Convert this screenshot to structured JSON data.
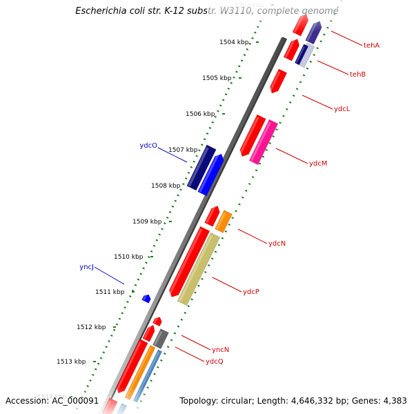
{
  "title": "Escherichia coli str. K-12 substr. W3110, complete genome",
  "accession": "Accession: AC_000091",
  "topology": "Topology: circular; Length: 4,646,332 bp; Genes: 4,383",
  "ticks": [
    {
      "label": "1503 kbp",
      "faded": true
    },
    {
      "label": "1504 kbp"
    },
    {
      "label": "1505 kbp"
    },
    {
      "label": "1506 kbp"
    },
    {
      "label": "1507 kbp"
    },
    {
      "label": "1508 kbp"
    },
    {
      "label": "1509 kbp"
    },
    {
      "label": "1510 kbp"
    },
    {
      "label": "1511 kbp"
    },
    {
      "label": "1512 kbp"
    },
    {
      "label": "1513 kbp"
    },
    {
      "label": "1514 kbp",
      "faded": true
    }
  ],
  "gene_labels": [
    {
      "name": "tehA",
      "color": "#cc0000"
    },
    {
      "name": "tehB",
      "color": "#cc0000"
    },
    {
      "name": "ydcL",
      "color": "#cc0000"
    },
    {
      "name": "ydcM",
      "color": "#cc0000"
    },
    {
      "name": "ydcN",
      "color": "#cc0000"
    },
    {
      "name": "ydcP",
      "color": "#cc0000"
    },
    {
      "name": "yncN",
      "color": "#cc0000"
    },
    {
      "name": "ydcQ",
      "color": "#cc0000"
    },
    {
      "name": "ydcO",
      "color": "#0000cc"
    },
    {
      "name": "yncJ",
      "color": "#0000cc"
    }
  ],
  "colors": {
    "red": "#ff0000",
    "navy": "#0a0a7a",
    "blue": "#0000ff",
    "magenta": "#ff1493",
    "orange": "#ff8c00",
    "khaki": "#c8bf6a",
    "gray": "#666666",
    "steelblue": "#4a86c0",
    "purple": "#3a2f8f",
    "lavender": "#c8c8e6",
    "backbone": "#7a7a7a",
    "green": "#1e7a1e"
  }
}
